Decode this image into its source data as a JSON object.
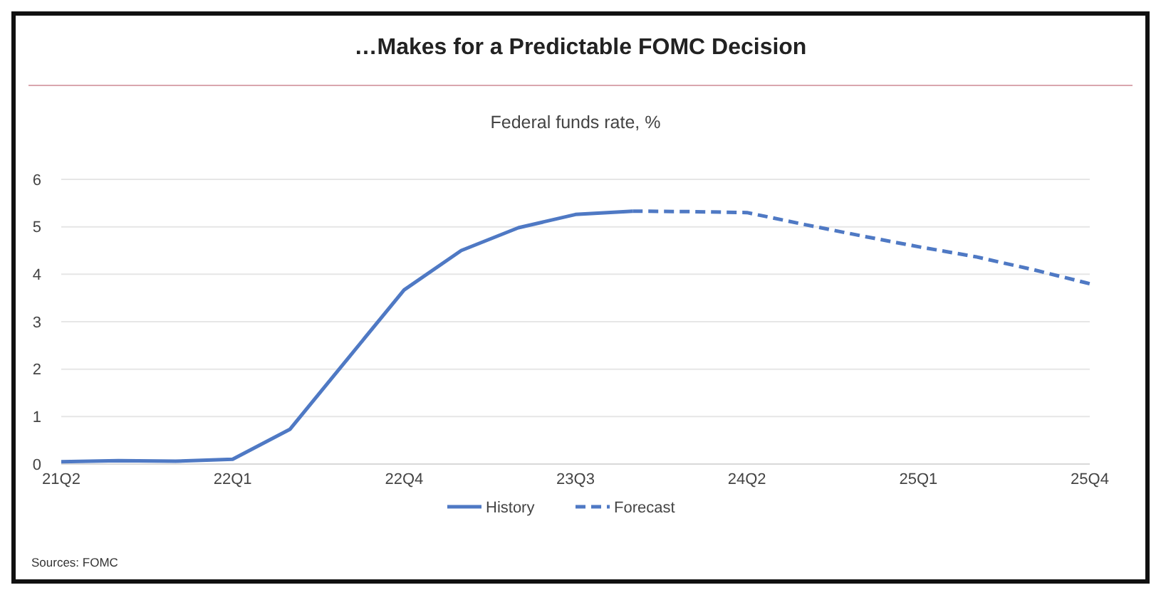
{
  "chart_data": {
    "type": "line",
    "title": "…Makes for a Predictable FOMC Decision",
    "subtitle": "Federal funds rate, %",
    "categories": [
      "21Q2",
      null,
      null,
      "22Q1",
      null,
      null,
      "22Q4",
      null,
      null,
      "23Q3",
      null,
      null,
      "24Q2",
      null,
      null,
      "25Q1",
      null,
      null,
      "25Q4"
    ],
    "series": [
      {
        "name": "History",
        "color": "#4f79c4",
        "line_style": "solid",
        "values": [
          0.05,
          0.07,
          0.06,
          0.1,
          0.73,
          2.2,
          3.67,
          4.5,
          4.98,
          5.26,
          5.33,
          null,
          null,
          null,
          null,
          null,
          null,
          null,
          null
        ]
      },
      {
        "name": "Forecast",
        "color": "#4f79c4",
        "line_style": "dashed",
        "values": [
          null,
          null,
          null,
          null,
          null,
          null,
          null,
          null,
          null,
          null,
          5.33,
          5.32,
          5.3,
          5.05,
          4.81,
          4.58,
          4.37,
          4.1,
          3.8
        ]
      }
    ],
    "ylim": [
      0,
      6
    ],
    "yticks": [
      0,
      1,
      2,
      3,
      4,
      5,
      6
    ],
    "grid": "y",
    "legend": "bottom",
    "marker": "none",
    "annotations": [
      "Sources: FOMC"
    ]
  }
}
